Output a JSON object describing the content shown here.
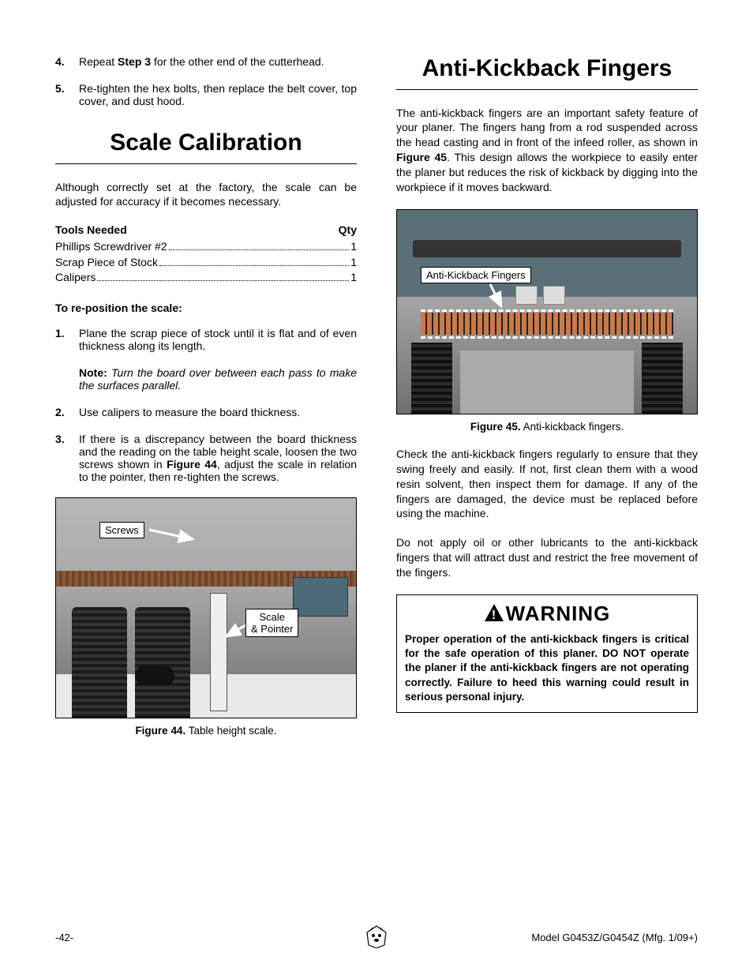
{
  "left": {
    "top_steps": [
      {
        "num": "4.",
        "html": "Repeat <b>Step 3</b> for the other end of the cutterhead."
      },
      {
        "num": "5.",
        "html": "Re-tighten the hex bolts, then replace the belt cover, top cover, and dust hood."
      }
    ],
    "section_title": "Scale Calibration",
    "intro": "Although correctly set at the factory, the scale can be adjusted for accuracy if it becomes necessary.",
    "tools_header_left": "Tools Needed",
    "tools_header_right": "Qty",
    "tools": [
      {
        "name": "Phillips Screwdriver #2",
        "qty": "1"
      },
      {
        "name": "Scrap Piece of Stock",
        "qty": "1"
      },
      {
        "name": "Calipers",
        "qty": "1"
      }
    ],
    "subhead": "To re-position the scale:",
    "steps": [
      {
        "num": "1.",
        "html": "Plane the scrap piece of stock until it is flat and of even thickness along its length.",
        "note_html": "<b>Note:</b> <span class=\"italic\">Turn the board over between each pass to make the surfaces parallel.</span>"
      },
      {
        "num": "2.",
        "html": "Use calipers to measure the board thickness."
      },
      {
        "num": "3.",
        "html": "If there is a discrepancy between the board thickness and the reading on the table height scale, loosen the two screws shown in <b>Figure 44</b>, adjust the scale in relation to the pointer, then re-tighten the screws."
      }
    ],
    "fig44": {
      "label_screws": "Screws",
      "label_scale": "Scale\n& Pointer",
      "caption_bold": "Figure 44.",
      "caption_rest": " Table height scale."
    }
  },
  "right": {
    "section_title": "Anti-Kickback Fingers",
    "para1": "The anti-kickback fingers are an important safety feature of your planer. The fingers hang from a rod suspended across the head casting and in front of the infeed roller, as shown in <b>Figure 45</b>. This design allows the workpiece to easily enter the planer but reduces the risk of kickback by digging into the workpiece if it moves backward.",
    "fig45": {
      "label": "Anti-Kickback Fingers",
      "caption_bold": "Figure 45.",
      "caption_rest": " Anti-kickback fingers."
    },
    "para2": "Check the anti-kickback fingers regularly to ensure that they swing freely and easily. If not, first clean them with a wood resin solvent, then inspect them for damage. If any of the fingers are damaged, the device must be replaced before using the machine.",
    "para3": "Do not apply oil or other lubricants to the anti-kickback fingers that will attract dust and restrict the free movement of the fingers.",
    "warning_title": "WARNING",
    "warning_text": "Proper operation of the anti-kickback fingers is critical for the safe operation of this planer. DO NOT operate the planer if the anti-kickback fingers are not operating correctly. Failure to heed this warning could result in serious personal injury."
  },
  "footer": {
    "left": "-42-",
    "right": "Model G0453Z/G0454Z (Mfg. 1/09+)"
  },
  "colors": {
    "text": "#000000",
    "bg": "#ffffff",
    "fig_border": "#000000"
  }
}
